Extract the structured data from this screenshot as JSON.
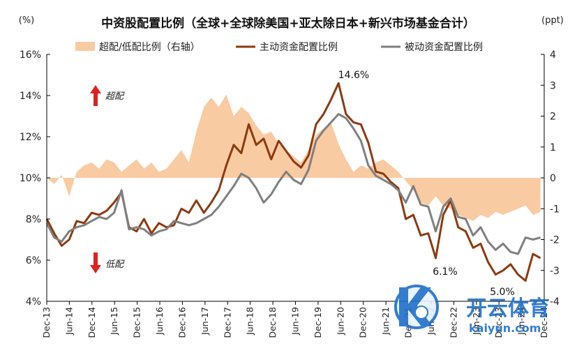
{
  "chart_data": {
    "type": "line",
    "title": "中资股配置比例（全球+全球除美国+亚太除日本+新兴市场基金合计）",
    "left_unit": "(%)",
    "right_unit": "(ppt)",
    "y_left": {
      "min": 4,
      "max": 16,
      "ticks": [
        "4%",
        "6%",
        "8%",
        "10%",
        "12%",
        "14%",
        "16%"
      ]
    },
    "y_right": {
      "min": -4,
      "max": 4,
      "ticks": [
        "-4",
        "-3",
        "-2",
        "-1",
        "0",
        "1",
        "2",
        "3",
        "4"
      ]
    },
    "x_ticks": [
      "Dec-13",
      "Jun-14",
      "Dec-14",
      "Jun-15",
      "Dec-15",
      "Jun-16",
      "Dec-16",
      "Jun-17",
      "Dec-17",
      "Jun-18",
      "Dec-18",
      "Jun-19",
      "Dec-19",
      "Jun-20",
      "Dec-20",
      "Jun-21",
      "Dec-21",
      "Jun-22",
      "Dec-22",
      "Jun-23",
      "Dec-23",
      "Jun-24",
      "Dec-24"
    ],
    "x_range": [
      0,
      133
    ],
    "legend": {
      "position": "top",
      "items": [
        "超配/低配比例（右轴）",
        "主动资金配置比例",
        "被动资金配置比例"
      ]
    },
    "annotations": {
      "over": "超配",
      "under": "低配",
      "peak": "14.6%",
      "mid_low": "6.1%",
      "low": "5.0%"
    },
    "colors": {
      "area": "#f9cba3",
      "active": "#8b3a0f",
      "passive": "#7f7f7f",
      "arrow": "#e02020"
    },
    "series": [
      {
        "name": "超配/低配比例（右轴）",
        "axis": "right",
        "type": "area",
        "x": [
          0,
          2,
          4,
          6,
          8,
          10,
          12,
          14,
          16,
          18,
          20,
          22,
          24,
          26,
          28,
          30,
          32,
          34,
          36,
          38,
          40,
          42,
          44,
          46,
          48,
          50,
          52,
          54,
          56,
          58,
          60,
          62,
          64,
          66,
          68,
          70,
          72,
          74,
          76,
          78,
          80,
          82,
          84,
          86,
          88,
          90,
          92,
          94,
          96,
          98,
          100,
          102,
          104,
          106,
          108,
          110,
          112,
          114,
          116,
          118,
          120,
          122,
          124,
          126,
          128,
          130,
          132
        ],
        "values": [
          0.0,
          -0.2,
          0.1,
          -0.6,
          0.2,
          0.4,
          0.5,
          0.3,
          0.6,
          0.5,
          0.2,
          0.4,
          0.6,
          0.3,
          0.5,
          0.2,
          0.3,
          0.6,
          0.9,
          0.5,
          1.5,
          2.3,
          2.6,
          2.3,
          2.7,
          2.0,
          2.3,
          2.1,
          1.7,
          1.4,
          1.5,
          1.1,
          0.9,
          0.7,
          0.5,
          0.9,
          1.4,
          1.6,
          1.8,
          1.1,
          0.6,
          0.2,
          0.4,
          0.3,
          0.5,
          0.6,
          0.4,
          0.2,
          -0.1,
          -0.4,
          -0.8,
          -0.9,
          -0.6,
          -0.9,
          -1.0,
          -1.2,
          -1.3,
          -1.4,
          -1.2,
          -1.3,
          -1.1,
          -1.2,
          -1.1,
          -1.0,
          -0.9,
          -1.2,
          -1.1
        ]
      },
      {
        "name": "主动资金配置比例",
        "axis": "left",
        "type": "line",
        "x": [
          0,
          2,
          4,
          6,
          8,
          10,
          12,
          14,
          16,
          18,
          20,
          22,
          24,
          26,
          28,
          30,
          32,
          34,
          36,
          38,
          40,
          42,
          44,
          46,
          48,
          50,
          52,
          54,
          56,
          58,
          60,
          62,
          64,
          66,
          68,
          70,
          72,
          74,
          76,
          78,
          80,
          82,
          84,
          86,
          88,
          90,
          92,
          94,
          96,
          98,
          100,
          102,
          104,
          106,
          108,
          110,
          112,
          114,
          116,
          118,
          120,
          122,
          124,
          126,
          128,
          130,
          132
        ],
        "values": [
          8.0,
          7.3,
          6.7,
          7.0,
          7.9,
          7.8,
          8.3,
          8.2,
          8.4,
          8.8,
          9.3,
          7.6,
          7.4,
          8.0,
          7.3,
          7.8,
          7.6,
          7.7,
          8.5,
          8.3,
          8.9,
          8.3,
          8.8,
          9.4,
          10.6,
          11.6,
          11.2,
          12.6,
          11.6,
          11.9,
          10.9,
          11.8,
          11.3,
          10.8,
          10.5,
          11.1,
          12.6,
          13.1,
          13.8,
          14.6,
          13.1,
          12.7,
          12.6,
          11.7,
          10.3,
          10.2,
          9.8,
          9.5,
          8.0,
          8.2,
          7.2,
          7.3,
          6.1,
          8.2,
          8.9,
          7.6,
          7.4,
          6.6,
          6.8,
          5.9,
          5.3,
          5.5,
          5.8,
          5.3,
          5.0,
          6.3,
          6.1
        ]
      },
      {
        "name": "被动资金配置比例",
        "axis": "left",
        "type": "line",
        "x": [
          0,
          2,
          4,
          6,
          8,
          10,
          12,
          14,
          16,
          18,
          20,
          22,
          24,
          26,
          28,
          30,
          32,
          34,
          36,
          38,
          40,
          42,
          44,
          46,
          48,
          50,
          52,
          54,
          56,
          58,
          60,
          62,
          64,
          66,
          68,
          70,
          72,
          74,
          76,
          78,
          80,
          82,
          84,
          86,
          88,
          90,
          92,
          94,
          96,
          98,
          100,
          102,
          104,
          106,
          108,
          110,
          112,
          114,
          116,
          118,
          120,
          122,
          124,
          126,
          128,
          130,
          132
        ],
        "values": [
          7.8,
          7.1,
          6.9,
          7.4,
          7.6,
          7.7,
          7.9,
          8.1,
          8.0,
          8.3,
          9.4,
          7.5,
          7.6,
          7.5,
          7.2,
          7.4,
          7.5,
          7.9,
          7.8,
          7.7,
          7.8,
          8.0,
          8.2,
          8.6,
          9.1,
          9.6,
          10.2,
          10.0,
          9.5,
          8.8,
          9.2,
          9.8,
          10.3,
          9.9,
          9.7,
          10.4,
          11.8,
          12.3,
          12.7,
          13.1,
          12.9,
          12.4,
          11.8,
          10.6,
          10.1,
          9.9,
          9.7,
          9.4,
          8.8,
          9.6,
          8.7,
          8.6,
          7.4,
          8.6,
          9.0,
          8.1,
          8.0,
          7.2,
          7.6,
          6.9,
          6.5,
          6.8,
          6.4,
          6.3,
          7.1,
          7.0,
          7.1
        ]
      }
    ]
  }
}
